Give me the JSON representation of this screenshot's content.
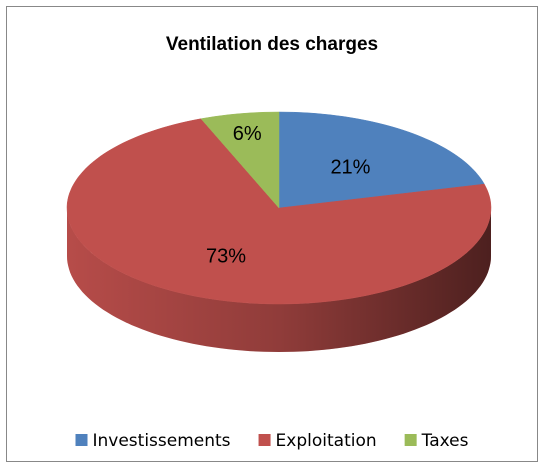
{
  "chart_data": {
    "type": "pie",
    "title": "Ventilation des charges",
    "categories": [
      "Investissements",
      "Exploitation",
      "Taxes"
    ],
    "values": [
      21,
      73,
      6
    ],
    "value_labels": [
      "21%",
      "73%",
      "6%"
    ],
    "colors": [
      "#4f81bd",
      "#c0504d",
      "#9bbb59"
    ],
    "legend": "bottom"
  }
}
